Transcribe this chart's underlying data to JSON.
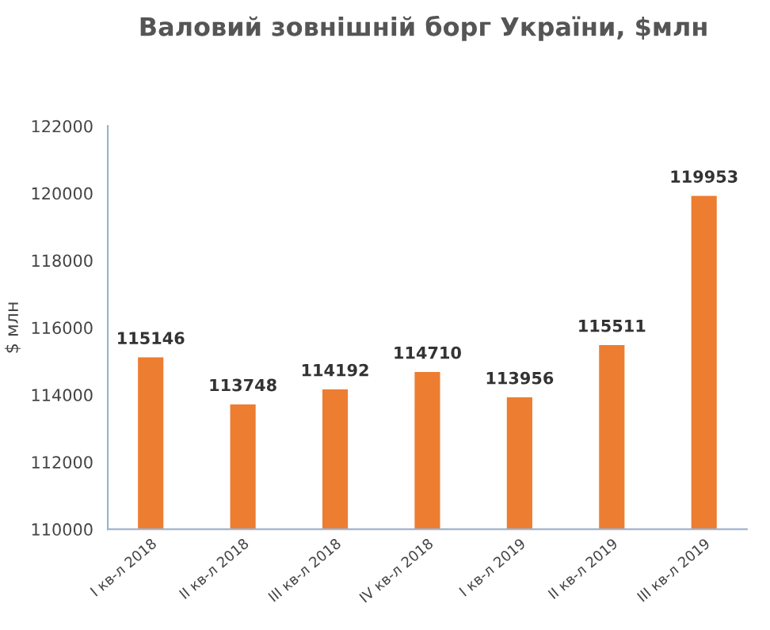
{
  "chart_data": {
    "type": "bar",
    "title": "Валовий зовнішній борг України, $млн",
    "ylabel": "$ млн",
    "categories": [
      "I кв-л 2018",
      "II кв-л 2018",
      "III кв-л 2018",
      "IV кв-л 2018",
      "I кв-л 2019",
      "II кв-л 2019",
      "III кв-л 2019"
    ],
    "values": [
      115146,
      113748,
      114192,
      114710,
      113956,
      115511,
      119953
    ],
    "color": "#ed7d31",
    "data_labels": true,
    "ylim": [
      110000,
      122000
    ],
    "yticks": [
      110000,
      112000,
      114000,
      116000,
      118000,
      120000,
      122000
    ],
    "grid": false
  }
}
